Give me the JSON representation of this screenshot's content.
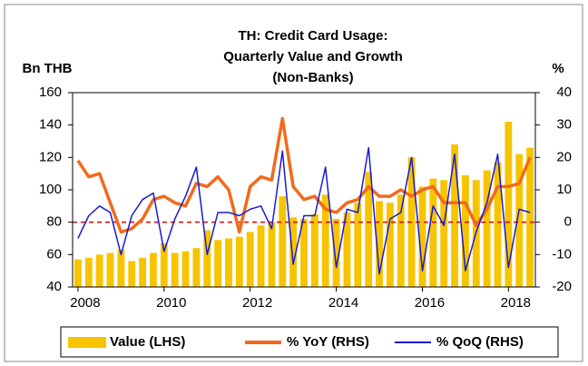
{
  "chart_data": {
    "type": "bar_line",
    "title": [
      "TH: Credit Card Usage:",
      "Quarterly Value and Growth",
      "(Non-Banks)"
    ],
    "y_label": "Bn THB",
    "y2_label": "%",
    "categories": [
      "2008",
      null,
      null,
      null,
      null,
      null,
      null,
      null,
      "2010",
      null,
      null,
      null,
      null,
      null,
      null,
      null,
      "2012",
      null,
      null,
      null,
      null,
      null,
      null,
      null,
      "2014",
      null,
      null,
      null,
      null,
      null,
      null,
      null,
      "2016",
      null,
      null,
      null,
      null,
      null,
      null,
      null,
      "2018",
      null,
      null
    ],
    "series": [
      {
        "name": "Value (LHS)",
        "type": "bar",
        "axis": "y",
        "color": "#f7c400",
        "values": [
          57,
          58,
          60,
          61,
          63,
          56,
          58,
          61,
          67,
          61,
          62,
          64,
          75,
          69,
          70,
          71,
          74,
          78,
          80,
          96,
          83,
          82,
          85,
          97,
          82,
          86,
          92,
          111,
          93,
          92,
          97,
          120,
          102,
          107,
          106,
          128,
          109,
          106,
          112,
          117,
          142,
          122,
          126
        ]
      },
      {
        "name": "% YoY (RHS)",
        "type": "line",
        "axis": "y2",
        "color": "#f26a1b",
        "values": [
          19,
          14,
          15,
          6,
          -3,
          -2,
          1,
          7,
          8,
          6,
          5,
          12,
          11,
          14,
          10,
          -3,
          11,
          14,
          13,
          32,
          11,
          7,
          8,
          4,
          3,
          6,
          7,
          11,
          8,
          8,
          10,
          8,
          10,
          11,
          6,
          6,
          6,
          -1,
          4,
          11,
          11,
          12,
          20
        ]
      },
      {
        "name": "% QoQ (RHS)",
        "type": "line",
        "axis": "y2",
        "color": "#1a1ad0",
        "values": [
          -5,
          2,
          5,
          3,
          -10,
          2,
          7,
          9,
          -9,
          1,
          8,
          17,
          -10,
          3,
          3,
          2,
          4,
          5,
          -2,
          22,
          -13,
          2,
          2,
          17,
          -14,
          4,
          3,
          23,
          -16,
          1,
          3,
          20,
          -15,
          5,
          -1,
          21,
          -15,
          -3,
          6,
          21,
          -14,
          4,
          3
        ]
      }
    ],
    "ylim": [
      40,
      160
    ],
    "yticks": [
      40,
      60,
      80,
      100,
      120,
      140,
      160
    ],
    "y2lim": [
      -20,
      40
    ],
    "y2ticks": [
      -20,
      -10,
      0,
      10,
      20,
      30,
      40
    ],
    "y2_reference": 0,
    "reference_color": "#e00000",
    "legend": "bottom"
  }
}
